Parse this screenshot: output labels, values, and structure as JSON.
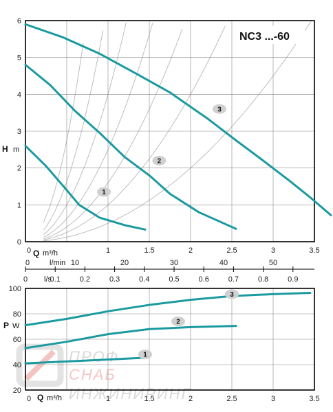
{
  "title": "NC3 ...-60",
  "colors": {
    "curve": "#1a9aa0",
    "grid": "#888888",
    "aux": "#bdbdbd",
    "frame": "#000000"
  },
  "watermark": {
    "line1": "ПРОФ",
    "line2": "СНАБ",
    "line3": "ИНЖИНИРИНГ"
  },
  "chart_data": [
    {
      "type": "line",
      "panel": "head",
      "ylabel_main": "H",
      "ylabel_unit": "m",
      "xlim": [
        0,
        3.5
      ],
      "ylim": [
        0,
        6
      ],
      "grid": true,
      "xticks": [
        0,
        0.5,
        1,
        1.5,
        2,
        2.5,
        3,
        3.5
      ],
      "xtick_labels": [
        "0",
        "",
        "1",
        "1.5",
        "2",
        "2.5",
        "3",
        "3.5"
      ],
      "yticks": [
        0,
        1,
        2,
        3,
        4,
        5,
        6
      ],
      "series": [
        {
          "name": "1",
          "points": [
            [
              0,
              2.6
            ],
            [
              0.25,
              2.05
            ],
            [
              0.5,
              1.4
            ],
            [
              0.65,
              1.0
            ],
            [
              0.9,
              0.65
            ],
            [
              1.2,
              0.45
            ],
            [
              1.45,
              0.33
            ]
          ]
        },
        {
          "name": "2",
          "points": [
            [
              0,
              4.8
            ],
            [
              0.3,
              4.25
            ],
            [
              0.6,
              3.55
            ],
            [
              0.9,
              2.95
            ],
            [
              1.2,
              2.3
            ],
            [
              1.5,
              1.8
            ],
            [
              1.75,
              1.3
            ],
            [
              2.1,
              0.8
            ],
            [
              2.55,
              0.35
            ]
          ]
        },
        {
          "name": "3",
          "points": [
            [
              0,
              5.9
            ],
            [
              0.45,
              5.55
            ],
            [
              0.9,
              5.1
            ],
            [
              1.35,
              4.55
            ],
            [
              1.75,
              4.05
            ],
            [
              2.2,
              3.35
            ],
            [
              2.55,
              2.75
            ],
            [
              2.85,
              2.25
            ],
            [
              3.2,
              1.65
            ],
            [
              3.45,
              1.2
            ],
            [
              3.7,
              0.72
            ]
          ]
        }
      ],
      "series_labels": [
        {
          "name": "1",
          "at": [
            0.95,
            1.35
          ]
        },
        {
          "name": "2",
          "at": [
            1.62,
            2.2
          ]
        },
        {
          "name": "3",
          "at": [
            2.35,
            3.6
          ]
        }
      ]
    },
    {
      "type": "line",
      "panel": "power",
      "ylabel_main": "P",
      "ylabel_unit": "W",
      "xlim": [
        0,
        3.5
      ],
      "ylim": [
        20,
        100
      ],
      "grid": true,
      "xticks": [
        0,
        0.5,
        1,
        1.5,
        2,
        2.5,
        3,
        3.5
      ],
      "xtick_labels": [
        "0",
        "",
        "1",
        "1.5",
        "2",
        "2.5",
        "3",
        "3.5"
      ],
      "yticks": [
        20,
        40,
        60,
        80,
        100
      ],
      "series": [
        {
          "name": "1",
          "points": [
            [
              0,
              41
            ],
            [
              0.5,
              42.5
            ],
            [
              1.0,
              44
            ],
            [
              1.45,
              45.5
            ]
          ]
        },
        {
          "name": "2",
          "points": [
            [
              0,
              53
            ],
            [
              0.5,
              58
            ],
            [
              1.0,
              64
            ],
            [
              1.5,
              68
            ],
            [
              2.0,
              69.5
            ],
            [
              2.55,
              70.5
            ]
          ]
        },
        {
          "name": "3",
          "points": [
            [
              0,
              71
            ],
            [
              0.5,
              76
            ],
            [
              1.0,
              82
            ],
            [
              1.5,
              87
            ],
            [
              2.0,
              91
            ],
            [
              2.5,
              94
            ],
            [
              3.0,
              95.5
            ],
            [
              3.45,
              96.5
            ]
          ]
        }
      ],
      "series_labels": [
        {
          "name": "1",
          "at": [
            1.45,
            48
          ]
        },
        {
          "name": "2",
          "at": [
            1.85,
            74
          ]
        },
        {
          "name": "3",
          "at": [
            2.5,
            95.5
          ]
        }
      ]
    }
  ],
  "axes": {
    "q_label": "Q",
    "q_unit": "m³/h",
    "lmin_unit": "l/min",
    "ls_unit": "l/s",
    "lmin_ticks": [
      0,
      10,
      20,
      30,
      40,
      50
    ],
    "ls_ticks": [
      0,
      0.1,
      0.2,
      0.3,
      0.4,
      0.5,
      0.6,
      0.7,
      0.8,
      0.9
    ],
    "ls_tick_labels": [
      "0",
      "0.1",
      "0.2",
      "0.3",
      "0.4",
      "0.5",
      "0.6",
      "0.7",
      "0.8",
      "0.9"
    ]
  }
}
